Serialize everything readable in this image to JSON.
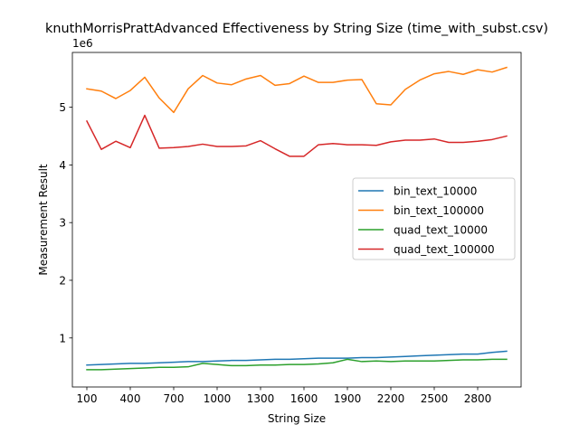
{
  "chart_data": {
    "type": "line",
    "title": "knuthMorrisPrattAdvanced Effectiveness by String Size (time_with_subst.csv)",
    "xlabel": "String Size",
    "ylabel": "Measurement Result",
    "y_scale_label": "1e6",
    "xlim": [
      0,
      3100
    ],
    "ylim": [
      0.15,
      5.95
    ],
    "x_ticks": [
      100,
      400,
      700,
      1000,
      1300,
      1600,
      1900,
      2200,
      2500,
      2800
    ],
    "y_ticks": [
      1,
      2,
      3,
      4,
      5
    ],
    "grid": false,
    "legend_position": "center-right",
    "x": [
      100,
      200,
      300,
      400,
      500,
      600,
      700,
      800,
      900,
      1000,
      1100,
      1200,
      1300,
      1400,
      1500,
      1600,
      1700,
      1800,
      1900,
      2000,
      2100,
      2200,
      2300,
      2400,
      2500,
      2600,
      2700,
      2800,
      2900,
      3000
    ],
    "series": [
      {
        "name": "bin_text_10000",
        "color": "#1f77b4",
        "values": [
          0.53,
          0.54,
          0.55,
          0.56,
          0.56,
          0.57,
          0.58,
          0.59,
          0.59,
          0.6,
          0.61,
          0.61,
          0.62,
          0.63,
          0.63,
          0.64,
          0.65,
          0.65,
          0.65,
          0.66,
          0.66,
          0.67,
          0.68,
          0.69,
          0.7,
          0.71,
          0.72,
          0.72,
          0.75,
          0.77
        ]
      },
      {
        "name": "bin_text_100000",
        "color": "#ff7f0e",
        "values": [
          5.32,
          5.28,
          5.15,
          5.29,
          5.52,
          5.16,
          4.91,
          5.32,
          5.55,
          5.42,
          5.39,
          5.49,
          5.55,
          5.38,
          5.41,
          5.54,
          5.43,
          5.43,
          5.47,
          5.48,
          5.06,
          5.04,
          5.31,
          5.47,
          5.58,
          5.62,
          5.57,
          5.65,
          5.61,
          5.69
        ]
      },
      {
        "name": "quad_text_10000",
        "color": "#2ca02c",
        "values": [
          0.45,
          0.45,
          0.46,
          0.47,
          0.48,
          0.49,
          0.49,
          0.5,
          0.56,
          0.54,
          0.52,
          0.52,
          0.53,
          0.53,
          0.54,
          0.54,
          0.55,
          0.57,
          0.63,
          0.59,
          0.6,
          0.59,
          0.6,
          0.6,
          0.6,
          0.61,
          0.62,
          0.62,
          0.63,
          0.63
        ]
      },
      {
        "name": "quad_text_100000",
        "color": "#d62728",
        "values": [
          4.76,
          4.27,
          4.41,
          4.3,
          4.86,
          4.29,
          4.3,
          4.32,
          4.36,
          4.32,
          4.32,
          4.33,
          4.42,
          4.28,
          4.15,
          4.15,
          4.35,
          4.37,
          4.35,
          4.35,
          4.34,
          4.4,
          4.43,
          4.43,
          4.45,
          4.39,
          4.39,
          4.41,
          4.44,
          4.5
        ]
      }
    ]
  }
}
